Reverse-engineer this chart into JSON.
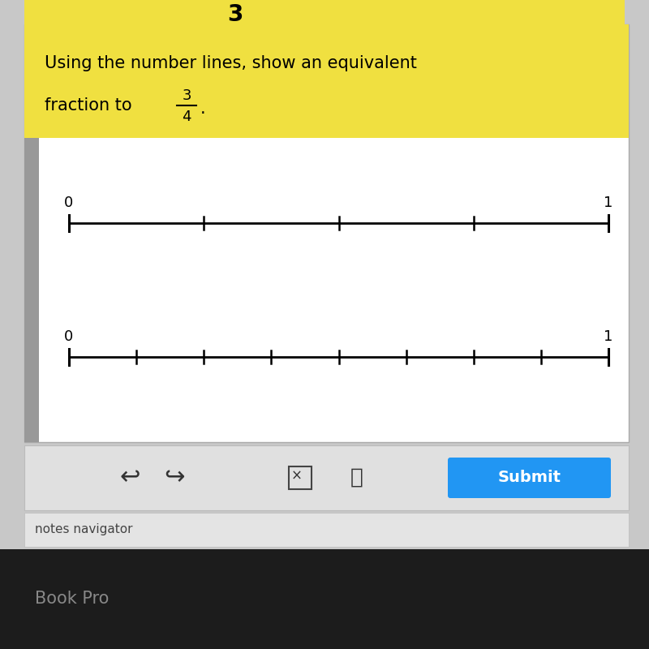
{
  "title_line1": "Using the number lines, show an equivalent",
  "title_line2": "fraction to",
  "fraction_num": "3",
  "fraction_den": "4",
  "header_bg": "#F0E040",
  "header_text_color": "#000000",
  "outer_bg": "#c8c8c8",
  "content_bg": "#f5f5f5",
  "white_area_bg": "#ffffff",
  "line1_divisions": 4,
  "line2_divisions": 8,
  "line_color": "#000000",
  "top_number": "3",
  "toolbar_bg": "#e0e0e0",
  "submit_bg": "#2196F3",
  "submit_text": "Submit",
  "notes_text": "notes navigator",
  "macbook_text": "Book Pro",
  "left_bar_color": "#999999",
  "notes_bg": "#e8e8e8",
  "macbook_bg": "#1c1c1c",
  "macbook_text_color": "#888888"
}
